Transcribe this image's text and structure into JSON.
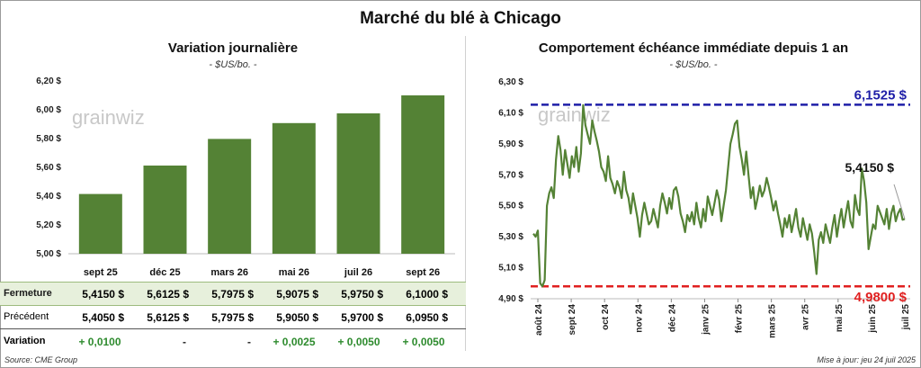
{
  "main_title": "Marché du blé à Chicago",
  "left": {
    "title": "Variation journalière",
    "subtitle": "- $US/bo. -",
    "watermark": "grainwiz"
  },
  "right": {
    "title": "Comportement échéance immédiate depuis 1 an",
    "subtitle": "- $US/bo. -",
    "watermark": "grainwiz",
    "high_label": "6,1525 $",
    "low_label": "4,9800 $",
    "last_label": "5,4150 $"
  },
  "table": {
    "row1_label": "Fermeture",
    "row2_label": "Précédent",
    "row3_label": "Variation",
    "fermeture": [
      "5,4150 $",
      "5,6125 $",
      "5,7975 $",
      "5,9075 $",
      "5,9750 $",
      "6,1000 $"
    ],
    "precedent": [
      "5,4050 $",
      "5,6125 $",
      "5,7975 $",
      "5,9050 $",
      "5,9700 $",
      "6,0950 $"
    ],
    "variation": [
      "+ 0,0100",
      "-",
      "-",
      "+ 0,0025",
      "+ 0,0050",
      "+ 0,0050"
    ]
  },
  "footer": {
    "source": "Source: CME Group",
    "updated": "Mise à jour: jeu 24 juil 2025"
  },
  "colors": {
    "bar": "#548235",
    "line": "#548235",
    "high": "#1f1fa8",
    "low": "#e02020"
  },
  "chart_data": [
    {
      "type": "bar",
      "title": "Variation journalière",
      "subtitle": "- $US/bo. -",
      "categories": [
        "sept 25",
        "déc 25",
        "mars 26",
        "mai 26",
        "juil 26",
        "sept 26"
      ],
      "values": [
        5.415,
        5.6125,
        5.7975,
        5.9075,
        5.975,
        6.1
      ],
      "ylim": [
        5.0,
        6.2
      ],
      "yticks": [
        "5,00 $",
        "5,20 $",
        "5,40 $",
        "5,60 $",
        "5,80 $",
        "6,00 $",
        "6,20 $"
      ],
      "grid": false
    },
    {
      "type": "line",
      "title": "Comportement échéance immédiate depuis 1 an",
      "subtitle": "- $US/bo. -",
      "x_labels": [
        "août 24",
        "sept 24",
        "oct 24",
        "nov 24",
        "déc 24",
        "janv 25",
        "févr 25",
        "mars 25",
        "avr 25",
        "mai 25",
        "juin 25",
        "juil 25"
      ],
      "ylim": [
        4.9,
        6.3
      ],
      "yticks": [
        "4,90 $",
        "5,10 $",
        "5,30 $",
        "5,50 $",
        "5,70 $",
        "5,90 $",
        "6,10 $",
        "6,30 $"
      ],
      "reference_lines": [
        {
          "label": "6,1525 $",
          "value": 6.1525
        },
        {
          "label": "4,9800 $",
          "value": 4.98
        }
      ],
      "series": [
        {
          "values": [
            5.32,
            5.3,
            5.34,
            5.0,
            4.98,
            5.02,
            5.5,
            5.58,
            5.62,
            5.55,
            5.8,
            5.95,
            5.86,
            5.7,
            5.86,
            5.77,
            5.68,
            5.82,
            5.75,
            5.88,
            5.72,
            5.84,
            6.15,
            6.02,
            5.96,
            5.9,
            6.05,
            5.98,
            5.92,
            5.85,
            5.75,
            5.72,
            5.66,
            5.82,
            5.68,
            5.64,
            5.58,
            5.66,
            5.62,
            5.55,
            5.72,
            5.6,
            5.55,
            5.45,
            5.58,
            5.5,
            5.42,
            5.3,
            5.44,
            5.52,
            5.45,
            5.38,
            5.4,
            5.48,
            5.42,
            5.36,
            5.5,
            5.58,
            5.52,
            5.45,
            5.55,
            5.48,
            5.6,
            5.62,
            5.56,
            5.45,
            5.4,
            5.33,
            5.44,
            5.4,
            5.46,
            5.38,
            5.52,
            5.42,
            5.36,
            5.48,
            5.4,
            5.56,
            5.5,
            5.44,
            5.52,
            5.6,
            5.54,
            5.4,
            5.5,
            5.6,
            5.75,
            5.9,
            5.96,
            6.03,
            6.05,
            5.88,
            5.8,
            5.7,
            5.85,
            5.7,
            5.55,
            5.62,
            5.48,
            5.55,
            5.63,
            5.56,
            5.6,
            5.68,
            5.62,
            5.55,
            5.47,
            5.53,
            5.45,
            5.38,
            5.3,
            5.42,
            5.36,
            5.44,
            5.33,
            5.4,
            5.48,
            5.36,
            5.3,
            5.42,
            5.35,
            5.28,
            5.38,
            5.32,
            5.2,
            5.06,
            5.28,
            5.33,
            5.26,
            5.38,
            5.32,
            5.26,
            5.36,
            5.44,
            5.3,
            5.4,
            5.48,
            5.36,
            5.45,
            5.53,
            5.4,
            5.36,
            5.57,
            5.48,
            5.44,
            5.74,
            5.66,
            5.52,
            5.22,
            5.3,
            5.38,
            5.35,
            5.5,
            5.46,
            5.42,
            5.38,
            5.48,
            5.35,
            5.45,
            5.5,
            5.4,
            5.45,
            5.48,
            5.41,
            5.415
          ]
        }
      ]
    }
  ]
}
